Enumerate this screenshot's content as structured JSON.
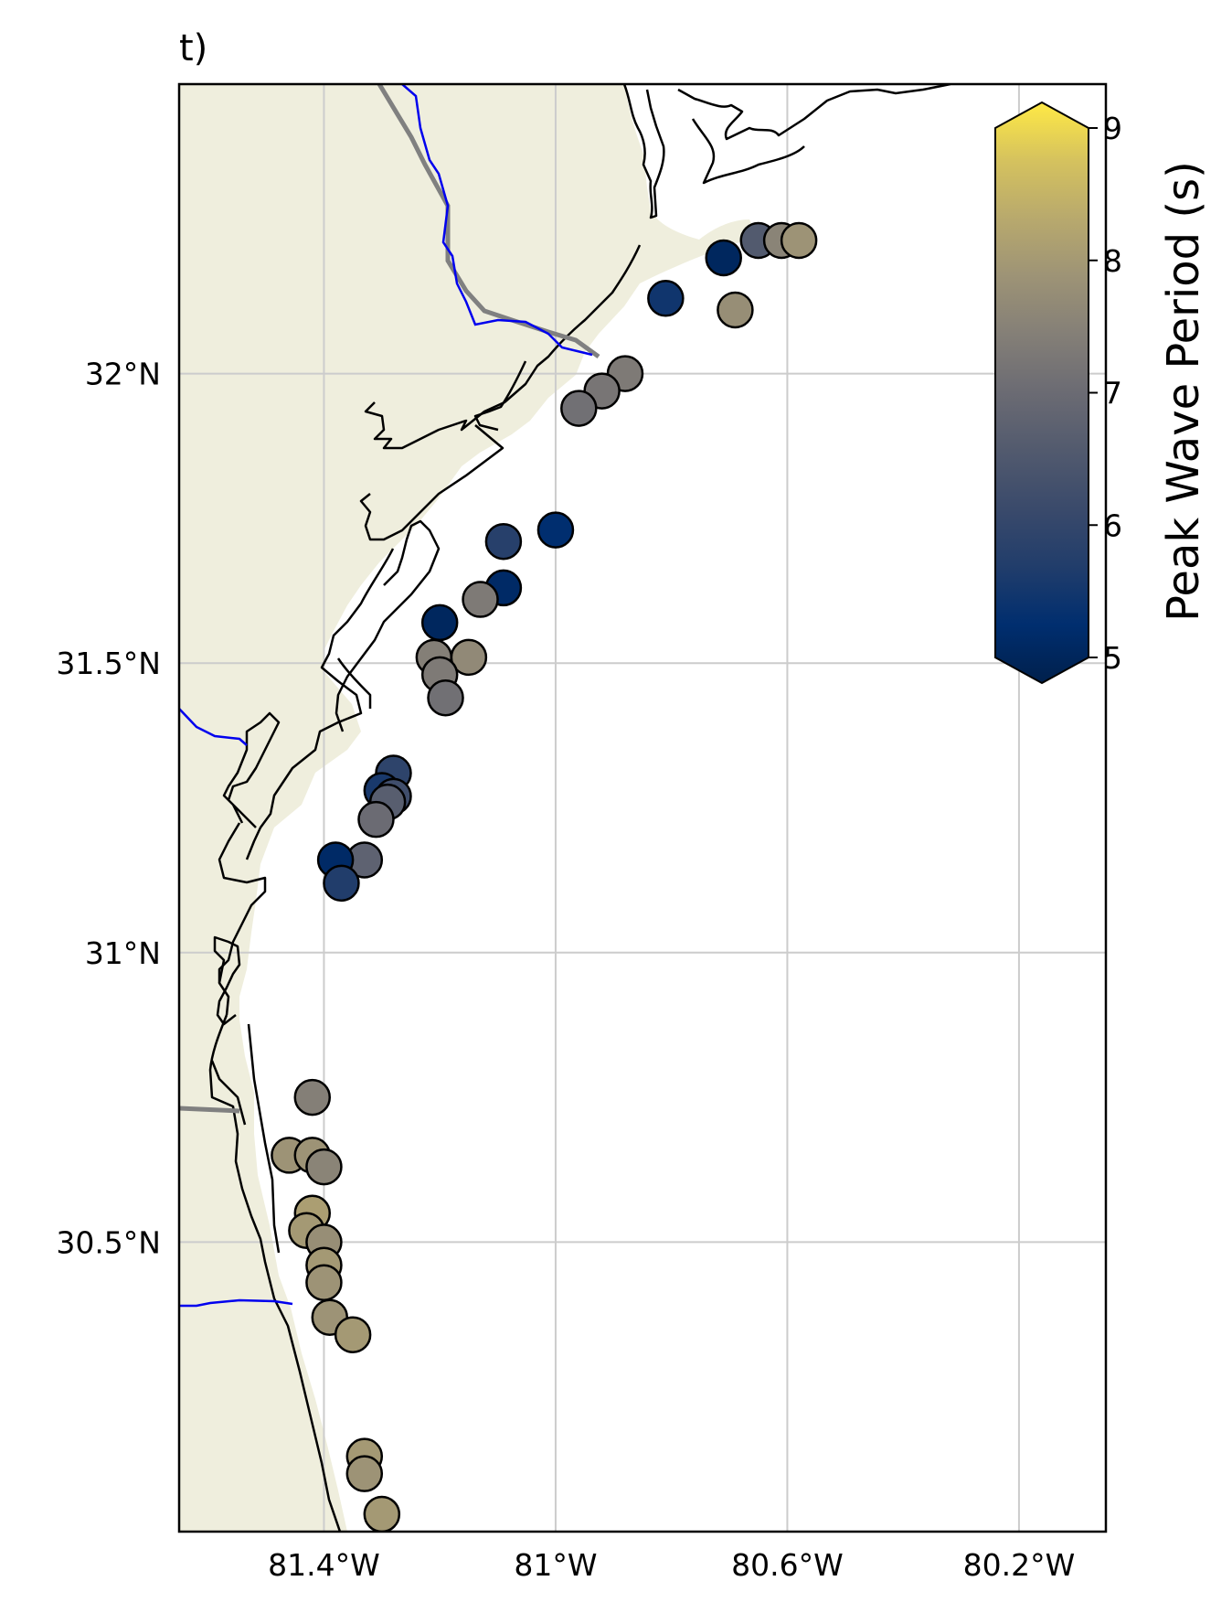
{
  "panel_label": "t)",
  "map": {
    "land_color": "#efeedd",
    "ocean_color": "#ffffff",
    "lon_range": [
      -81.65,
      -80.05
    ],
    "lat_range": [
      30.0,
      32.5
    ],
    "lon_ticks": [
      {
        "value": -81.4,
        "label": "81.4°W"
      },
      {
        "value": -81.0,
        "label": "81°W"
      },
      {
        "value": -80.6,
        "label": "80.6°W"
      },
      {
        "value": -80.2,
        "label": "80.2°W"
      }
    ],
    "lat_ticks": [
      {
        "value": 32.0,
        "label": "32°N"
      },
      {
        "value": 31.5,
        "label": "31.5°N"
      },
      {
        "value": 31.0,
        "label": "31°N"
      },
      {
        "value": 30.5,
        "label": "30.5°N"
      }
    ],
    "grid": true
  },
  "colorbar": {
    "title": "Peak Wave Period (s)",
    "min": 5,
    "max": 9,
    "extend": "both",
    "colormap": "cividis",
    "ticks": [
      {
        "value": 9,
        "label": "9"
      },
      {
        "value": 8,
        "label": "8"
      },
      {
        "value": 7,
        "label": "7"
      },
      {
        "value": 6,
        "label": "6"
      },
      {
        "value": 5,
        "label": "5"
      }
    ]
  },
  "chart_data": {
    "type": "scatter",
    "x_unit": "degrees longitude",
    "y_unit": "degrees latitude",
    "color_unit": "s",
    "points": [
      {
        "lon": -80.65,
        "lat": 32.23,
        "period": 6.6
      },
      {
        "lon": -80.61,
        "lat": 32.23,
        "period": 7.5
      },
      {
        "lon": -80.58,
        "lat": 32.23,
        "period": 7.8
      },
      {
        "lon": -80.71,
        "lat": 32.2,
        "period": 5.2
      },
      {
        "lon": -80.81,
        "lat": 32.13,
        "period": 5.6
      },
      {
        "lon": -80.69,
        "lat": 32.11,
        "period": 7.7
      },
      {
        "lon": -80.88,
        "lat": 32.0,
        "period": 7.3
      },
      {
        "lon": -80.92,
        "lat": 31.97,
        "period": 7.2
      },
      {
        "lon": -80.96,
        "lat": 31.94,
        "period": 7.1
      },
      {
        "lon": -81.0,
        "lat": 31.73,
        "period": 5.4
      },
      {
        "lon": -81.09,
        "lat": 31.71,
        "period": 5.9
      },
      {
        "lon": -81.09,
        "lat": 31.63,
        "period": 5.3
      },
      {
        "lon": -81.13,
        "lat": 31.61,
        "period": 7.3
      },
      {
        "lon": -81.2,
        "lat": 31.57,
        "period": 5.2
      },
      {
        "lon": -81.21,
        "lat": 31.51,
        "period": 7.4
      },
      {
        "lon": -81.15,
        "lat": 31.51,
        "period": 7.6
      },
      {
        "lon": -81.2,
        "lat": 31.48,
        "period": 7.3
      },
      {
        "lon": -81.19,
        "lat": 31.44,
        "period": 7.1
      },
      {
        "lon": -81.28,
        "lat": 31.31,
        "period": 6.0
      },
      {
        "lon": -81.3,
        "lat": 31.28,
        "period": 5.7
      },
      {
        "lon": -81.28,
        "lat": 31.27,
        "period": 6.3
      },
      {
        "lon": -81.29,
        "lat": 31.26,
        "period": 6.7
      },
      {
        "lon": -81.31,
        "lat": 31.23,
        "period": 7.0
      },
      {
        "lon": -81.33,
        "lat": 31.16,
        "period": 6.8
      },
      {
        "lon": -81.38,
        "lat": 31.16,
        "period": 5.3
      },
      {
        "lon": -81.37,
        "lat": 31.12,
        "period": 5.8
      },
      {
        "lon": -81.42,
        "lat": 30.75,
        "period": 7.4
      },
      {
        "lon": -81.46,
        "lat": 30.65,
        "period": 7.8
      },
      {
        "lon": -81.42,
        "lat": 30.65,
        "period": 7.8
      },
      {
        "lon": -81.4,
        "lat": 30.63,
        "period": 7.5
      },
      {
        "lon": -81.42,
        "lat": 30.55,
        "period": 8.0
      },
      {
        "lon": -81.43,
        "lat": 30.52,
        "period": 7.9
      },
      {
        "lon": -81.4,
        "lat": 30.5,
        "period": 7.7
      },
      {
        "lon": -81.4,
        "lat": 30.46,
        "period": 7.9
      },
      {
        "lon": -81.4,
        "lat": 30.43,
        "period": 7.8
      },
      {
        "lon": -81.39,
        "lat": 30.37,
        "period": 7.8
      },
      {
        "lon": -81.35,
        "lat": 30.34,
        "period": 7.9
      },
      {
        "lon": -81.33,
        "lat": 30.13,
        "period": 7.9
      },
      {
        "lon": -81.33,
        "lat": 30.1,
        "period": 7.8
      },
      {
        "lon": -81.3,
        "lat": 30.03,
        "period": 7.9
      }
    ]
  }
}
